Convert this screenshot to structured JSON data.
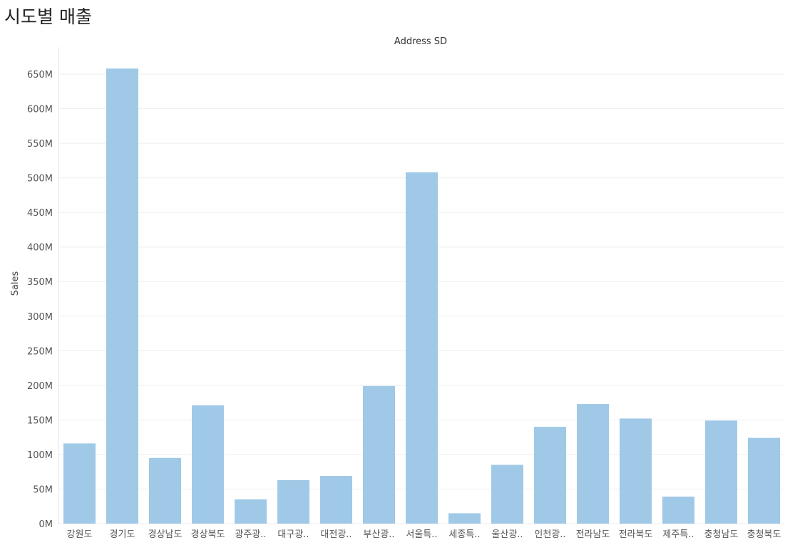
{
  "page": {
    "title": "시도별 매출"
  },
  "chart_data": {
    "type": "bar",
    "column_header": "Address SD",
    "ylabel": "Sales",
    "xlabel": "",
    "ylim": [
      0,
      670000000
    ],
    "ticks": [
      0,
      50000000,
      100000000,
      150000000,
      200000000,
      250000000,
      300000000,
      350000000,
      400000000,
      450000000,
      500000000,
      550000000,
      600000000,
      650000000
    ],
    "tick_labels": [
      "0M",
      "50M",
      "100M",
      "150M",
      "200M",
      "250M",
      "300M",
      "350M",
      "400M",
      "450M",
      "500M",
      "550M",
      "600M",
      "650M"
    ],
    "grid": true,
    "bar_color": "#a0c9e7",
    "categories": [
      "강원도",
      "경기도",
      "경상남도",
      "경상북도",
      "광주광..",
      "대구광..",
      "대전광..",
      "부산광..",
      "서울특..",
      "세종특..",
      "울산광..",
      "인천광..",
      "전라남도",
      "전라북도",
      "제주특..",
      "충청남도",
      "충청북도"
    ],
    "values": [
      116000000,
      658000000,
      95000000,
      171000000,
      35000000,
      63000000,
      69000000,
      199000000,
      508000000,
      15000000,
      85000000,
      140000000,
      173000000,
      152000000,
      39000000,
      149000000,
      124000000
    ]
  }
}
